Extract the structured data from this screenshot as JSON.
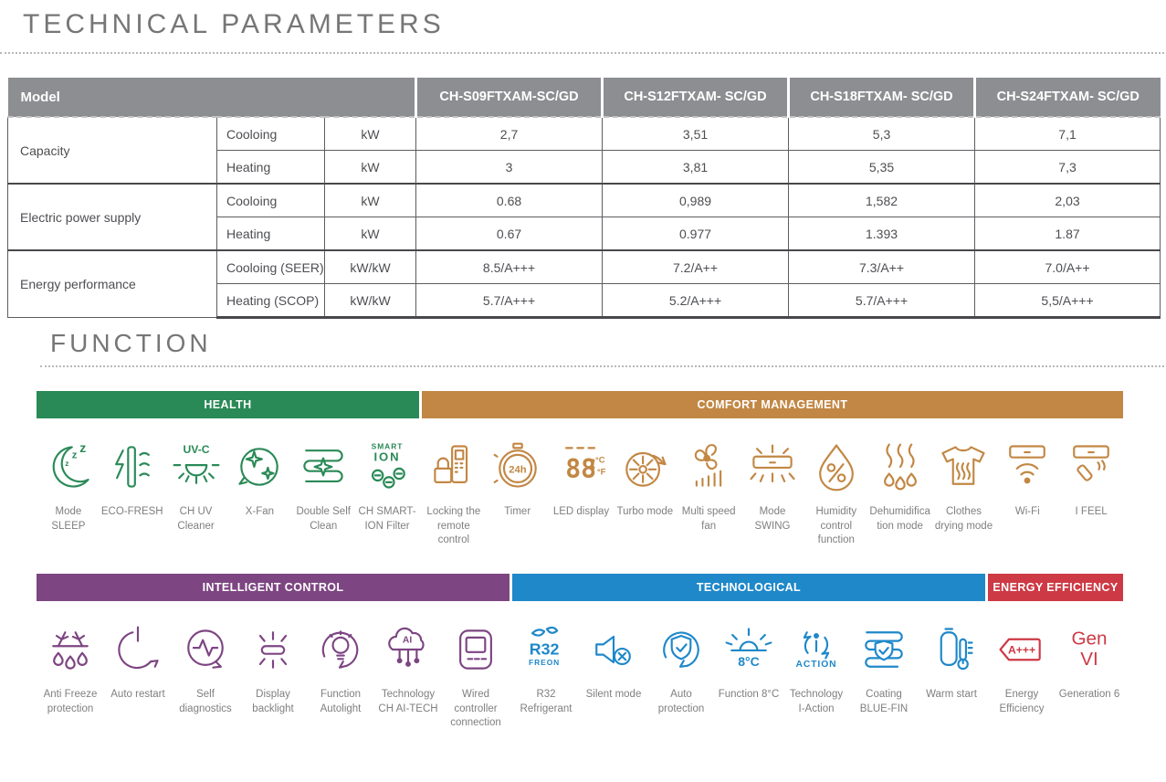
{
  "page": {
    "tech_title": "TECHNICAL PARAMETERS",
    "function_title": "FUNCTION"
  },
  "colors": {
    "table_header_gray": "#8d8e91",
    "health_green": "#2a8a57",
    "comfort_orange": "#c28744",
    "intelligent_purple": "#7d4582",
    "technological_blue": "#1f88c9",
    "energy_red": "#cd3944",
    "label_gray": "#7f7f80"
  },
  "table": {
    "model_header": "Model",
    "models": [
      "CH-S09FTXAM-SC/GD",
      "CH-S12FTXAM- SC/GD",
      "CH-S18FTXAM- SC/GD",
      "CH-S24FTXAM- SC/GD"
    ],
    "groups": [
      {
        "label": "Capacity",
        "rows": [
          {
            "param": "Cooloing",
            "unit": "kW",
            "values": [
              "2,7",
              "3,51",
              "5,3",
              "7,1"
            ]
          },
          {
            "param": "Heating",
            "unit": "kW",
            "values": [
              "3",
              "3,81",
              "5,35",
              "7,3"
            ]
          }
        ]
      },
      {
        "label": "Electric power supply",
        "rows": [
          {
            "param": "Cooloing",
            "unit": "kW",
            "values": [
              "0.68",
              "0,989",
              "1,582",
              "2,03"
            ]
          },
          {
            "param": "Heating",
            "unit": "kW",
            "values": [
              "0.67",
              "0.977",
              "1.393",
              "1.87"
            ]
          }
        ]
      },
      {
        "label": "Energy performance",
        "rows": [
          {
            "param": "Cooloing (SEER)",
            "unit": "kW/kW",
            "values": [
              "8.5/A+++",
              "7.2/A++",
              "7.3/A++",
              "7.0/A++"
            ]
          },
          {
            "param": "Heating (SCOP)",
            "unit": "kW/kW",
            "values": [
              "5.7/A+++",
              "5.2/A+++",
              "5.7/A+++",
              "5,5/A+++"
            ]
          }
        ]
      }
    ]
  },
  "function_rows": [
    {
      "groups": [
        {
          "name": "HEALTH",
          "color": "#2a8a57",
          "items": [
            {
              "label": "Mode SLEEP",
              "icon": "moon-sleep-icon"
            },
            {
              "label": "ECO-FRESH",
              "icon": "eco-fresh-icon"
            },
            {
              "label": "CH UV Cleaner",
              "icon": "uv-lamp-icon"
            },
            {
              "label": "X-Fan",
              "icon": "x-fan-icon"
            },
            {
              "label": "Double Self Clean",
              "icon": "double-self-clean-icon"
            },
            {
              "label": "CH SMART-ION Filter",
              "icon": "smart-ion-icon"
            }
          ]
        },
        {
          "name": "COMFORT MANAGEMENT",
          "color": "#c28744",
          "items": [
            {
              "label": "Locking the remote control",
              "icon": "remote-lock-icon"
            },
            {
              "label": "Timer",
              "icon": "timer-24h-icon"
            },
            {
              "label": "LED display",
              "icon": "led-display-icon"
            },
            {
              "label": "Turbo mode",
              "icon": "turbo-fan-icon"
            },
            {
              "label": "Multi speed fan",
              "icon": "multi-speed-fan-icon"
            },
            {
              "label": "Mode SWING",
              "icon": "swing-icon"
            },
            {
              "label": "Humidity control function",
              "icon": "humidity-drop-icon"
            },
            {
              "label": "Dehumidification mode",
              "icon": "dehumidification-icon"
            },
            {
              "label": "Clothes drying mode",
              "icon": "clothes-drying-icon"
            },
            {
              "label": "Wi-Fi",
              "icon": "wifi-icon"
            },
            {
              "label": "I FEEL",
              "icon": "i-feel-icon"
            }
          ]
        }
      ]
    },
    {
      "groups": [
        {
          "name": "INTELLIGENT CONTROL",
          "color": "#7d4582",
          "items": [
            {
              "label": "Anti Freeze protection",
              "icon": "anti-freeze-icon"
            },
            {
              "label": "Auto restart",
              "icon": "auto-restart-icon"
            },
            {
              "label": "Self diagnostics",
              "icon": "self-diagnostics-icon"
            },
            {
              "label": "Display backlight",
              "icon": "display-backlight-icon"
            },
            {
              "label": "Function Autolight",
              "icon": "autolight-icon"
            },
            {
              "label": "Technology CH AI-TECH",
              "icon": "ai-tech-icon"
            },
            {
              "label": "Wired controller connection",
              "icon": "wired-controller-icon"
            }
          ]
        },
        {
          "name": "TECHNOLOGICAL",
          "color": "#1f88c9",
          "items": [
            {
              "label": "R32 Refrigerant",
              "icon": "r32-freon-icon"
            },
            {
              "label": "Silent mode",
              "icon": "silent-mode-icon"
            },
            {
              "label": "Auto protection",
              "icon": "auto-protection-icon"
            },
            {
              "label": "Function 8°C",
              "icon": "function-8c-icon"
            },
            {
              "label": "Technology I-Action",
              "icon": "i-action-icon"
            },
            {
              "label": "Coating BLUE-FIN",
              "icon": "blue-fin-icon"
            },
            {
              "label": "Warm start",
              "icon": "warm-start-icon"
            }
          ]
        },
        {
          "name": "ENERGY EFFICIENCY",
          "color": "#cd3944",
          "items": [
            {
              "label": "Energy Efficiency",
              "icon": "energy-label-icon"
            },
            {
              "label": "Generation 6",
              "icon": "gen-vi-icon"
            }
          ]
        }
      ]
    }
  ]
}
